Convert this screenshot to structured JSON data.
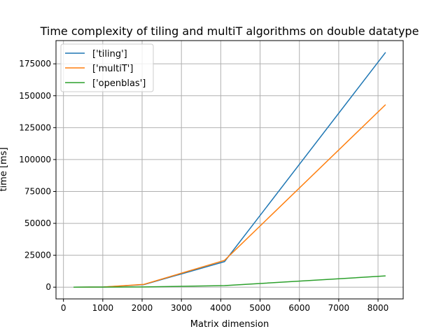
{
  "chart_data": {
    "type": "line",
    "title": "Time complexity of tiling and multiT algorithms on double datatype",
    "xlabel": "Matrix dimension",
    "ylabel": "time [ms]",
    "x": [
      256,
      1024,
      2048,
      4096,
      8192
    ],
    "series": [
      {
        "name": "['tiling']",
        "color": "#1f77b4",
        "values": [
          0,
          150,
          2000,
          20000,
          184000
        ]
      },
      {
        "name": "['multiT']",
        "color": "#ff7f0e",
        "values": [
          0,
          150,
          2200,
          21000,
          143000
        ]
      },
      {
        "name": "['openblas']",
        "color": "#2ca02c",
        "values": [
          0,
          50,
          200,
          1200,
          8800
        ]
      }
    ],
    "xlim": [
      -190,
      8640
    ],
    "ylim": [
      -9200,
      193200
    ],
    "xticks": [
      0,
      1000,
      2000,
      3000,
      4000,
      5000,
      6000,
      7000,
      8000
    ],
    "yticks": [
      0,
      25000,
      50000,
      75000,
      100000,
      125000,
      150000,
      175000
    ],
    "grid": true,
    "legend_position": "upper-left"
  }
}
